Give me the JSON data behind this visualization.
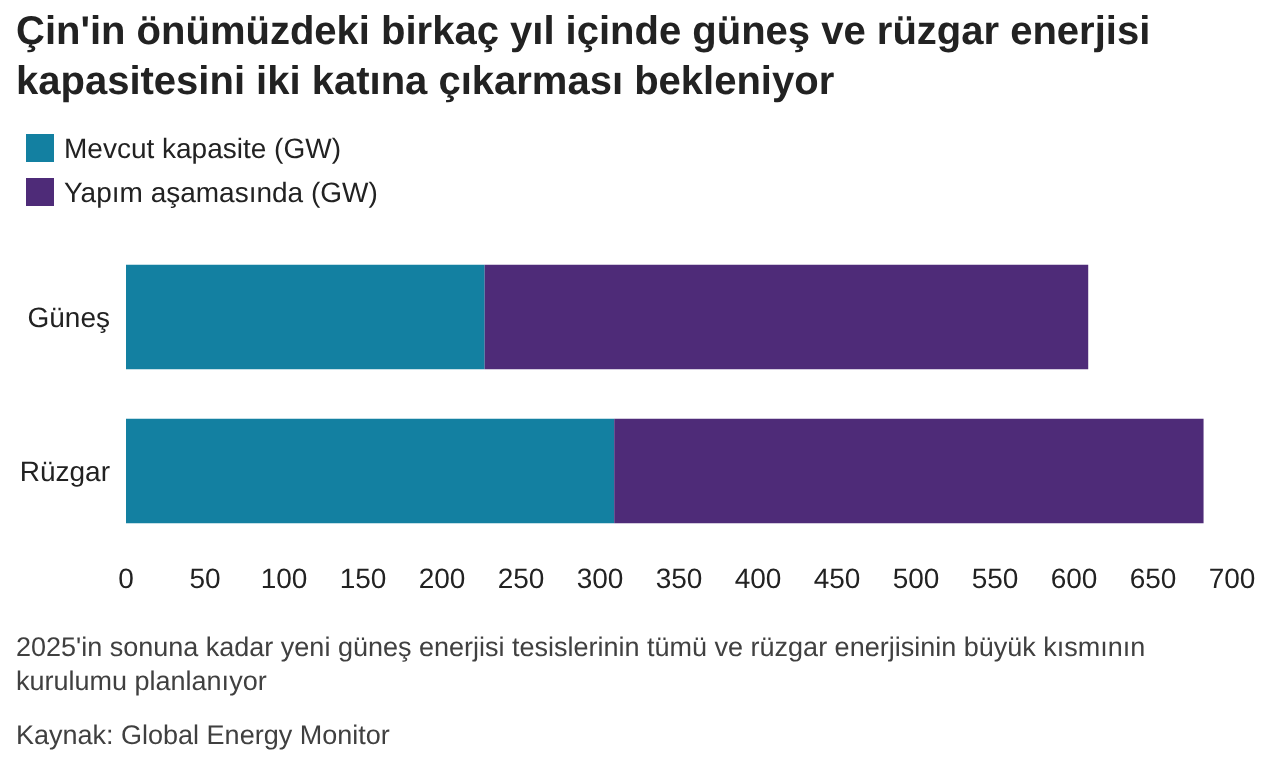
{
  "chart_data": {
    "type": "bar",
    "orientation": "horizontal",
    "stacked": true,
    "title": "Çin'in önümüzdeki birkaç yıl içinde güneş ve rüzgar enerjisi kapasitesini iki katına çıkarması bekleniyor",
    "categories": [
      "Güneş",
      "Rüzgar"
    ],
    "series": [
      {
        "name": "Mevcut kapasite (GW)",
        "color": "#1380a1",
        "values": [
          227,
          309
        ]
      },
      {
        "name": "Yapım aşamasında (GW)",
        "color": "#4e2b78",
        "values": [
          382,
          373
        ]
      }
    ],
    "xlim": [
      0,
      700
    ],
    "xticks": [
      0,
      50,
      100,
      150,
      200,
      250,
      300,
      350,
      400,
      450,
      500,
      550,
      600,
      650,
      700
    ],
    "grid": false,
    "legend": "top left",
    "annotations": [
      "2025'in sonuna kadar yeni güneş enerjisi tesislerinin tümü ve rüzgar enerjisinin büyük kısmının kurulumu planlanıyor",
      "Kaynak: Global Energy Monitor"
    ]
  }
}
